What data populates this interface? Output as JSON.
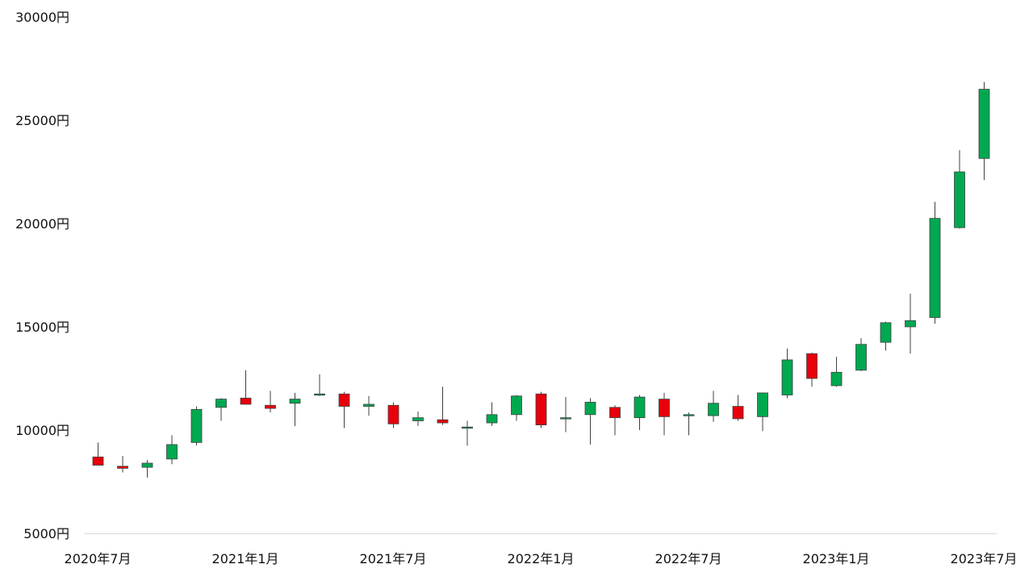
{
  "chart_data": {
    "type": "candlestick",
    "currency_suffix": "円",
    "y_ticks": [
      "30000円",
      "25000円",
      "20000円",
      "15000円",
      "10000円",
      "5000円"
    ],
    "y_tick_values": [
      30000,
      25000,
      20000,
      15000,
      10000,
      5000
    ],
    "ylim": [
      5000,
      30000
    ],
    "x_ticks": [
      "2020年7月",
      "2021年1月",
      "2021年7月",
      "2022年1月",
      "2022年7月",
      "2023年1月",
      "2023年7月"
    ],
    "x_tick_indices": [
      0,
      6,
      12,
      18,
      24,
      30,
      36
    ],
    "grid": false,
    "up_color": "#00A850",
    "down_color": "#E8000B",
    "axis_color": "#D9D9D9",
    "wick_color": "#404040",
    "candles": [
      {
        "x": "2020年7月",
        "open": 8700,
        "high": 9400,
        "low": 8300,
        "close": 8300
      },
      {
        "x": "2020年8月",
        "open": 8250,
        "high": 8750,
        "low": 7950,
        "close": 8150
      },
      {
        "x": "2020年9月",
        "open": 8200,
        "high": 8550,
        "low": 7700,
        "close": 8400
      },
      {
        "x": "2020年10月",
        "open": 8600,
        "high": 9750,
        "low": 8350,
        "close": 9300
      },
      {
        "x": "2020年11月",
        "open": 9400,
        "high": 11150,
        "low": 9250,
        "close": 11000
      },
      {
        "x": "2020年12月",
        "open": 11100,
        "high": 11550,
        "low": 10450,
        "close": 11500
      },
      {
        "x": "2021年1月",
        "open": 11550,
        "high": 12900,
        "low": 11250,
        "close": 11250
      },
      {
        "x": "2021年2月",
        "open": 11200,
        "high": 11900,
        "low": 10850,
        "close": 11050
      },
      {
        "x": "2021年3月",
        "open": 11300,
        "high": 11800,
        "low": 10200,
        "close": 11500
      },
      {
        "x": "2021年4月",
        "open": 11700,
        "high": 12700,
        "low": 11650,
        "close": 11750
      },
      {
        "x": "2021年5月",
        "open": 11750,
        "high": 11850,
        "low": 10100,
        "close": 11150
      },
      {
        "x": "2021年6月",
        "open": 11150,
        "high": 11650,
        "low": 10700,
        "close": 11250
      },
      {
        "x": "2021年7月",
        "open": 11200,
        "high": 11350,
        "low": 10100,
        "close": 10300
      },
      {
        "x": "2021年8月",
        "open": 10450,
        "high": 10900,
        "low": 10200,
        "close": 10600
      },
      {
        "x": "2021年9月",
        "open": 10500,
        "high": 12100,
        "low": 10250,
        "close": 10350
      },
      {
        "x": "2021年10月",
        "open": 10100,
        "high": 10450,
        "low": 9250,
        "close": 10150
      },
      {
        "x": "2021年11月",
        "open": 10350,
        "high": 11350,
        "low": 10200,
        "close": 10750
      },
      {
        "x": "2021年12月",
        "open": 10750,
        "high": 11700,
        "low": 10450,
        "close": 11650
      },
      {
        "x": "2022年1月",
        "open": 11750,
        "high": 11850,
        "low": 10100,
        "close": 10250
      },
      {
        "x": "2022年2月",
        "open": 10600,
        "high": 11600,
        "low": 9900,
        "close": 10600
      },
      {
        "x": "2022年3月",
        "open": 10750,
        "high": 11550,
        "low": 9300,
        "close": 11350
      },
      {
        "x": "2022年4月",
        "open": 11100,
        "high": 11200,
        "low": 9750,
        "close": 10600
      },
      {
        "x": "2022年5月",
        "open": 10600,
        "high": 11700,
        "low": 10000,
        "close": 11600
      },
      {
        "x": "2022年6月",
        "open": 11500,
        "high": 11800,
        "low": 9750,
        "close": 10650
      },
      {
        "x": "2022年7月",
        "open": 10700,
        "high": 10850,
        "low": 9750,
        "close": 10750
      },
      {
        "x": "2022年8月",
        "open": 10700,
        "high": 11900,
        "low": 10400,
        "close": 11300
      },
      {
        "x": "2022年9月",
        "open": 11150,
        "high": 11700,
        "low": 10450,
        "close": 10550
      },
      {
        "x": "2022年10月",
        "open": 10650,
        "high": 11800,
        "low": 9950,
        "close": 11800
      },
      {
        "x": "2022年11月",
        "open": 11700,
        "high": 13950,
        "low": 11550,
        "close": 13400
      },
      {
        "x": "2022年12月",
        "open": 13700,
        "high": 13750,
        "low": 12100,
        "close": 12500
      },
      {
        "x": "2023年1月",
        "open": 12150,
        "high": 13550,
        "low": 12100,
        "close": 12800
      },
      {
        "x": "2023年2月",
        "open": 12900,
        "high": 14450,
        "low": 12850,
        "close": 14150
      },
      {
        "x": "2023年3月",
        "open": 14250,
        "high": 15250,
        "low": 13850,
        "close": 15200
      },
      {
        "x": "2023年4月",
        "open": 15000,
        "high": 16600,
        "low": 13700,
        "close": 15300
      },
      {
        "x": "2023年5月",
        "open": 15450,
        "high": 21050,
        "low": 15150,
        "close": 20250
      },
      {
        "x": "2023年6月",
        "open": 19800,
        "high": 23550,
        "low": 19750,
        "close": 22500
      },
      {
        "x": "2023年7月",
        "open": 23150,
        "high": 26850,
        "low": 22100,
        "close": 26500
      }
    ]
  }
}
